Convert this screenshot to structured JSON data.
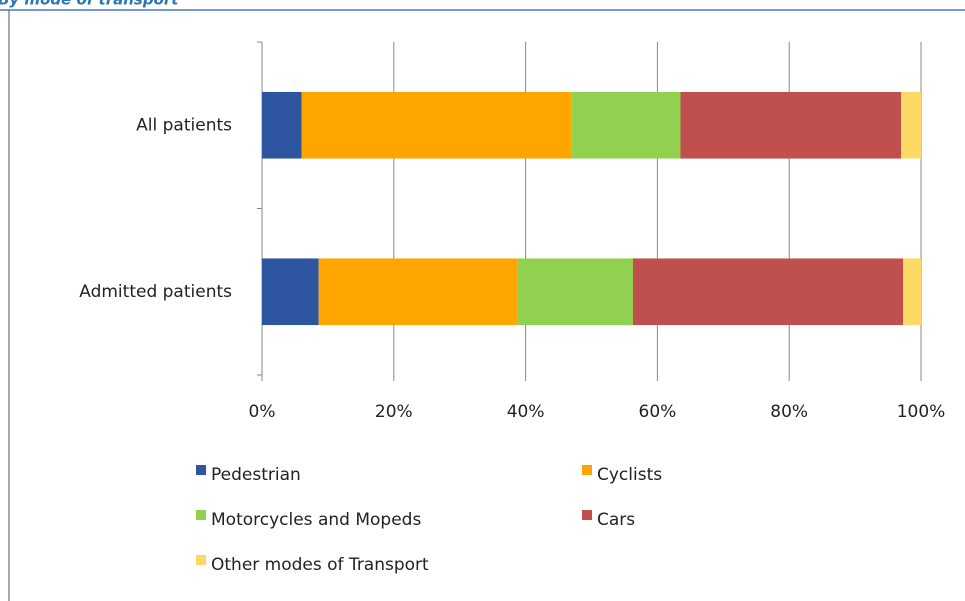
{
  "chart_data": {
    "type": "stacked-bar-horizontal",
    "title": "By mode of transport",
    "categories": [
      "All patients",
      "Admitted patients"
    ],
    "series": [
      {
        "name": "Pedestrian",
        "color": "#2e55a0",
        "values": [
          6,
          8.6
        ]
      },
      {
        "name": "Cyclists",
        "color": "#ffa500",
        "values": [
          41,
          30.2
        ]
      },
      {
        "name": "Motorcycles and Mopeds",
        "color": "#92d050",
        "values": [
          16.5,
          17.5
        ]
      },
      {
        "name": "Cars",
        "color": "#c0504d",
        "values": [
          33.5,
          41
        ]
      },
      {
        "name": "Other modes of Transport",
        "color": "#ffd966",
        "values": [
          3,
          2.7
        ]
      }
    ],
    "xlim": [
      0,
      100
    ],
    "xticks": [
      {
        "value": 0,
        "label": "0%"
      },
      {
        "value": 20,
        "label": "20%"
      },
      {
        "value": 40,
        "label": "40%"
      },
      {
        "value": 60,
        "label": "60%"
      },
      {
        "value": 80,
        "label": "80%"
      },
      {
        "value": 100,
        "label": "100%"
      }
    ],
    "grid": true
  }
}
